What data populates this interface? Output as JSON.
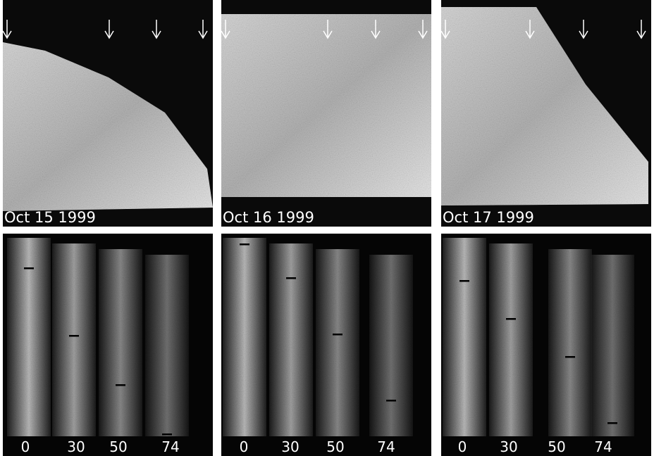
{
  "panels": [
    {
      "date": "Oct 15 1999",
      "labels": [
        "0",
        "30",
        "50",
        "74"
      ]
    },
    {
      "date": "Oct 16 1999",
      "labels": [
        "0",
        "30",
        "50",
        "74"
      ]
    },
    {
      "date": "Oct 17 1999",
      "labels": [
        "0",
        "30",
        "50",
        "74"
      ]
    }
  ]
}
